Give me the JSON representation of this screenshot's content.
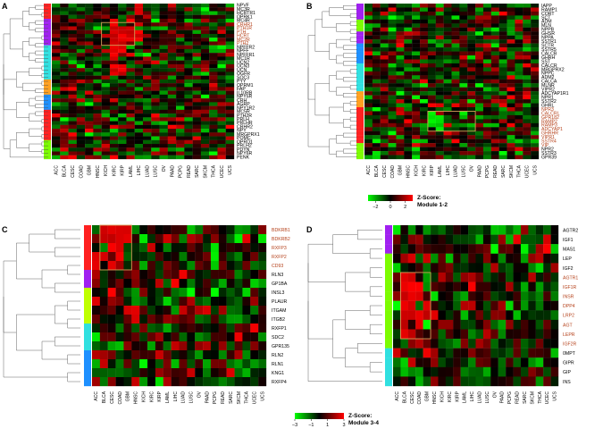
{
  "chart_data": [
    {
      "type": "heatmap",
      "panel": "A",
      "columns": [
        "ACC",
        "BLCA",
        "CESC",
        "COAD",
        "GBM",
        "HNSC",
        "KICH",
        "KIRC",
        "KIRP",
        "LAML",
        "LIHC",
        "LUAD",
        "LUSC",
        "OV",
        "PAAD",
        "PCPG",
        "READ",
        "SARC",
        "SKCM",
        "THCA",
        "UCEC",
        "UCS"
      ],
      "rows": [
        "NPVF",
        "MC3R",
        "HCRTR1",
        "OPRK1",
        "MC4R",
        "CRHR1",
        "PTH1R",
        "PTH",
        "HCRT",
        "MC2R",
        "PTH2",
        "NPFFR2",
        "NPFF",
        "NPFFR1",
        "MC1R",
        "UCN2",
        "UCN3",
        "UCN",
        "OGFR",
        "SOC3",
        "PYY",
        "OPRM1",
        "FAP",
        "IL10RB",
        "NPY5R",
        "CRH",
        "AGRP",
        "NPY1R2",
        "MC5R",
        "PTH2R",
        "PRLH",
        "PRLHR",
        "CRHR2",
        "NPY",
        "MRGPRX1",
        "POMC",
        "OPRD1",
        "PRLH2",
        "PDYN",
        "NPY6R",
        "PENK"
      ],
      "highlighted_rows": [
        "CRHR1",
        "PTH1R",
        "PTH",
        "HCRT",
        "MC2R",
        "PTH2"
      ],
      "row_groups": [
        "#ff2020",
        "#ff2020",
        "#ff2020",
        "#ff2020",
        "#a020f0",
        "#a020f0",
        "#a020f0",
        "#a020f0",
        "#a020f0",
        "#a020f0",
        "#a020f0",
        "#30e0e0",
        "#30e0e0",
        "#30e0e0",
        "#30e0e0",
        "#30e0e0",
        "#30e0e0",
        "#30e0e0",
        "#30e0e0",
        "#30e0e0",
        "#ffa020",
        "#ffa020",
        "#ffa020",
        "#ffa020",
        "#1e90ff",
        "#1e90ff",
        "#1e90ff",
        "#1e90ff",
        "#ff2020",
        "#ff2020",
        "#ff2020",
        "#ff2020",
        "#ff2020",
        "#ff2020",
        "#ff2020",
        "#ff2020",
        "#7cfc00",
        "#7cfc00",
        "#7cfc00",
        "#7cfc00",
        "#7cfc00"
      ],
      "hot_cells": [
        [
          4,
          7
        ],
        [
          5,
          7
        ],
        [
          6,
          7
        ],
        [
          7,
          7
        ],
        [
          8,
          7
        ],
        [
          9,
          7
        ],
        [
          10,
          7
        ],
        [
          11,
          7
        ],
        [
          12,
          7
        ],
        [
          13,
          7
        ],
        [
          14,
          7
        ],
        [
          6,
          8
        ],
        [
          7,
          8
        ],
        [
          8,
          8
        ],
        [
          9,
          8
        ],
        [
          10,
          8
        ],
        [
          11,
          8
        ],
        [
          12,
          8
        ],
        [
          16,
          7
        ],
        [
          17,
          7
        ],
        [
          18,
          7
        ],
        [
          16,
          8
        ],
        [
          17,
          8
        ],
        [
          18,
          8
        ],
        [
          6,
          9
        ],
        [
          7,
          9
        ],
        [
          8,
          9
        ],
        [
          9,
          9
        ],
        [
          5,
          10
        ]
      ],
      "seed": 11
    },
    {
      "type": "heatmap",
      "panel": "B",
      "columns": [
        "ACC",
        "BLCA",
        "CESC",
        "COAD",
        "GBM",
        "HNSC",
        "KICH",
        "KIRC",
        "KIRP",
        "LAML",
        "LIHC",
        "LUAD",
        "LUSC",
        "OV",
        "PAAD",
        "PCPG",
        "READ",
        "SARC",
        "SKCM",
        "THCA",
        "UCEC",
        "UCS"
      ],
      "rows": [
        "IAPP",
        "RAMP1",
        "CORT",
        "SCT",
        "ADM",
        "MLN",
        "NPPB",
        "GHSR",
        "NPPA",
        "SSTR1",
        "SCTR",
        "SSTR5",
        "CALCB",
        "GHRH",
        "SST",
        "CALCR",
        "MRGPRX2",
        "NPPC",
        "ADM2",
        "CALCA",
        "MLNR",
        "VIPR2",
        "ADCYAP1R1",
        "NPR1",
        "SSTR2",
        "GHRL",
        "NPR3",
        "CALCRL",
        "GPR182",
        "RAMP2",
        "RAMP3",
        "ADCYAP1",
        "GHRHR",
        "VIPR1",
        "SSTR4",
        "VIP",
        "NPR2",
        "SSTR3",
        "GPR39"
      ],
      "highlighted_rows": [
        "NPR3",
        "CALCRL",
        "GPR182",
        "RAMP2",
        "RAMP3",
        "ADCYAP1",
        "GHRHR",
        "VIPR1",
        "SSTR4",
        "VIP"
      ],
      "row_groups": [
        "#a020f0",
        "#a020f0",
        "#a020f0",
        "#a020f0",
        "#7cfc00",
        "#7cfc00",
        "#7cfc00",
        "#a020f0",
        "#a020f0",
        "#a020f0",
        "#1e90ff",
        "#1e90ff",
        "#1e90ff",
        "#1e90ff",
        "#1e90ff",
        "#30e0e0",
        "#30e0e0",
        "#30e0e0",
        "#30e0e0",
        "#30e0e0",
        "#30e0e0",
        "#30e0e0",
        "#ffa020",
        "#ffa020",
        "#ffa020",
        "#ffa020",
        "#ff2020",
        "#ff2020",
        "#ff2020",
        "#ff2020",
        "#ff2020",
        "#ff2020",
        "#ff2020",
        "#ff2020",
        "#ff2020",
        "#7cfc00",
        "#7cfc00",
        "#7cfc00",
        "#7cfc00"
      ],
      "hot_cells": [],
      "cool_cells": [
        [
          27,
          8
        ],
        [
          28,
          8
        ],
        [
          29,
          8
        ],
        [
          30,
          8
        ],
        [
          28,
          9
        ],
        [
          29,
          9
        ],
        [
          31,
          9
        ],
        [
          27,
          12
        ],
        [
          28,
          12
        ],
        [
          30,
          13
        ]
      ],
      "seed": 23
    },
    {
      "type": "heatmap",
      "panel": "C",
      "columns": [
        "ACC",
        "BLCA",
        "CESC",
        "COAD",
        "GBM",
        "HNSC",
        "KICH",
        "KIRC",
        "KIRP",
        "LAML",
        "LIHC",
        "LUAD",
        "LUSC",
        "OV",
        "PAAD",
        "PCPG",
        "READ",
        "SARC",
        "SKCM",
        "THCA",
        "UCEC",
        "UCS"
      ],
      "rows": [
        "BDKRB1",
        "BDKRB2",
        "RXFP3",
        "RXFP2",
        "CD93",
        "RLN3",
        "GP1BA",
        "INSL3",
        "PLAUR",
        "ITGAM",
        "ITGB2",
        "RXFP1",
        "SDC2",
        "GPR135",
        "RLN2",
        "RLN1",
        "KNG1",
        "RXFP4"
      ],
      "highlighted_rows": [
        "BDKRB1",
        "BDKRB2",
        "RXFP3",
        "RXFP2",
        "CD93"
      ],
      "row_groups": [
        "#ff2020",
        "#ff2020",
        "#ff2020",
        "#ff2020",
        "#ff2020",
        "#a020f0",
        "#a020f0",
        "#bfff00",
        "#bfff00",
        "#bfff00",
        "#bfff00",
        "#30e0e0",
        "#30e0e0",
        "#30e0e0",
        "#1e90ff",
        "#1e90ff",
        "#1e90ff",
        "#1e90ff"
      ],
      "hot_cells": [
        [
          0,
          1
        ],
        [
          0,
          2
        ],
        [
          0,
          3
        ],
        [
          0,
          4
        ],
        [
          1,
          1
        ],
        [
          1,
          2
        ],
        [
          1,
          3
        ],
        [
          1,
          4
        ],
        [
          2,
          2
        ],
        [
          2,
          3
        ],
        [
          3,
          1
        ],
        [
          3,
          3
        ],
        [
          4,
          2
        ]
      ],
      "seed": 37
    },
    {
      "type": "heatmap",
      "panel": "D",
      "columns": [
        "ACC",
        "BLCA",
        "CESC",
        "COAD",
        "GBM",
        "HNSC",
        "KICH",
        "KIRC",
        "KIRP",
        "LAML",
        "LIHC",
        "LUAD",
        "LUSC",
        "OV",
        "PAAD",
        "PCPG",
        "READ",
        "SARC",
        "SKCM",
        "THCA",
        "UCEC",
        "UCS"
      ],
      "rows": [
        "AGTR2",
        "IGF1",
        "MAS1",
        "LEP",
        "IGF2",
        "AGTR1",
        "IGF1R",
        "INSR",
        "DPP4",
        "LRP2",
        "AGT",
        "LEPR",
        "IGF2R",
        "0MPT",
        "GIPR",
        "GIP",
        "INS"
      ],
      "highlighted_rows": [
        "AGTR1",
        "IGF1R",
        "INSR",
        "DPP4",
        "LRP2",
        "AGT",
        "LEPR",
        "IGF2R"
      ],
      "row_groups": [
        "#a020f0",
        "#a020f0",
        "#a020f0",
        "#7cfc00",
        "#7cfc00",
        "#7cfc00",
        "#7cfc00",
        "#7cfc00",
        "#7cfc00",
        "#7cfc00",
        "#7cfc00",
        "#7cfc00",
        "#7cfc00",
        "#30e0e0",
        "#30e0e0",
        "#30e0e0",
        "#30e0e0"
      ],
      "hot_cells": [
        [
          5,
          1
        ],
        [
          6,
          1
        ],
        [
          7,
          1
        ],
        [
          8,
          1
        ],
        [
          9,
          1
        ],
        [
          10,
          1
        ],
        [
          5,
          2
        ],
        [
          6,
          2
        ],
        [
          7,
          2
        ],
        [
          8,
          2
        ],
        [
          9,
          2
        ],
        [
          6,
          3
        ],
        [
          7,
          3
        ],
        [
          9,
          3
        ],
        [
          10,
          3
        ],
        [
          11,
          2
        ],
        [
          8,
          4
        ],
        [
          9,
          4
        ],
        [
          11,
          1
        ]
      ],
      "seed": 53
    }
  ],
  "legends": [
    {
      "title_line1": "Z-Score:",
      "title_line2": "Module 1-2",
      "ticks": [
        "−2",
        "0",
        "2"
      ],
      "range": [
        -3,
        3
      ]
    },
    {
      "title_line1": "Z-Score:",
      "title_line2": "Module 3-4",
      "ticks": [
        "−3",
        "−1",
        "1",
        "3"
      ],
      "range": [
        -3,
        3
      ]
    }
  ],
  "colors": {
    "low": "#00ff00",
    "mid": "#000000",
    "high": "#ff0000",
    "highlight_text": "#b5411a",
    "box": "#d6a15a"
  }
}
